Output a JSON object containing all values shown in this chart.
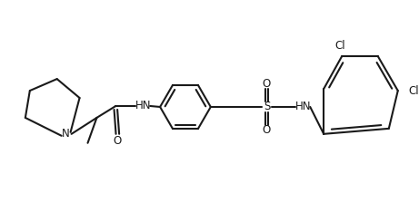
{
  "bg_color": "#ffffff",
  "line_color": "#1a1a1a",
  "line_width": 1.5,
  "font_size": 8.5,
  "figsize": [
    4.61,
    2.24
  ],
  "dpi": 100
}
